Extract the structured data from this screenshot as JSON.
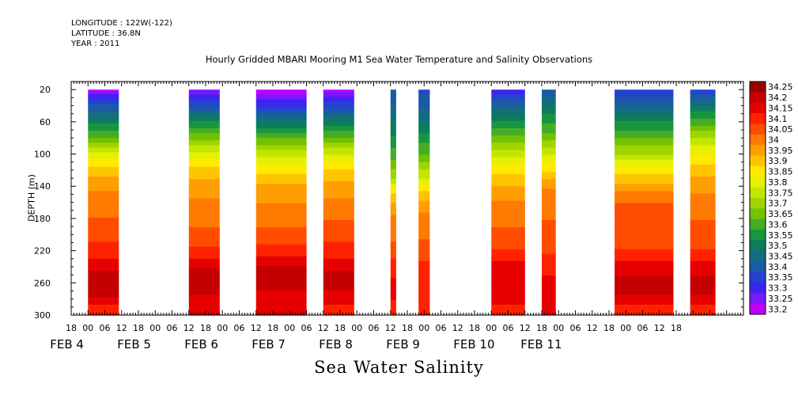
{
  "header": {
    "longitude": "LONGITUDE : 122W(-122)",
    "latitude": "LATITUDE : 36.8N",
    "year": "YEAR : 2011"
  },
  "chart_data": {
    "type": "heatmap",
    "title": "Hourly Gridded MBARI Mooring M1 Sea Water Temperature and Salinity Observations",
    "xlabel": "Sea Water Salinity",
    "ylabel": "DEPTH (m)",
    "y_range": [
      300,
      10
    ],
    "y_ticks": [
      20,
      60,
      100,
      140,
      180,
      220,
      260,
      300
    ],
    "x_hour_ticks": [
      "18",
      "00",
      "06",
      "12",
      "18",
      "00",
      "06",
      "12",
      "18",
      "00",
      "06",
      "12",
      "18",
      "00",
      "06",
      "12",
      "18",
      "00",
      "06",
      "12",
      "18",
      "00",
      "06",
      "12",
      "18",
      "00",
      "06",
      "12",
      "18",
      "00",
      "06",
      "12",
      "18",
      "00",
      "06",
      "12",
      "18"
    ],
    "x_day_labels": [
      "FEB  4",
      "FEB  5",
      "FEB  6",
      "FEB  7",
      "FEB  8",
      "FEB  9",
      "FEB 10",
      "FEB 11"
    ],
    "colorbar": {
      "levels": [
        "34.25",
        "34.2",
        "34.15",
        "34.1",
        "34.05",
        "34",
        "33.95",
        "33.9",
        "33.85",
        "33.8",
        "33.75",
        "33.7",
        "33.65",
        "33.6",
        "33.55",
        "33.5",
        "33.45",
        "33.4",
        "33.35",
        "33.3",
        "33.25",
        "33.2"
      ],
      "colors": [
        "#990000",
        "#c40000",
        "#e60000",
        "#ff2200",
        "#ff4d00",
        "#ff7a00",
        "#ff9e00",
        "#ffc400",
        "#ffea00",
        "#e6f000",
        "#c3e600",
        "#9ed400",
        "#72c200",
        "#45ad25",
        "#17963f",
        "#0c7d5c",
        "#136c82",
        "#1a5aa6",
        "#2443d0",
        "#3d25f0",
        "#7a17ff",
        "#c000ff"
      ]
    },
    "series": [
      {
        "start": "2011-02-04T00:00",
        "end": "2011-02-04T11:00",
        "profile": [
          [
            20,
            33.22
          ],
          [
            35,
            33.38
          ],
          [
            55,
            33.5
          ],
          [
            75,
            33.62
          ],
          [
            95,
            33.78
          ],
          [
            115,
            33.9
          ],
          [
            135,
            33.98
          ],
          [
            160,
            34.02
          ],
          [
            190,
            34.07
          ],
          [
            220,
            34.12
          ],
          [
            245,
            34.2
          ],
          [
            275,
            34.23
          ],
          [
            290,
            34.12
          ]
        ]
      },
      {
        "start": "2011-02-05T12:00",
        "end": "2011-02-05T23:00",
        "profile": [
          [
            20,
            33.25
          ],
          [
            40,
            33.4
          ],
          [
            60,
            33.55
          ],
          [
            80,
            33.68
          ],
          [
            100,
            33.82
          ],
          [
            120,
            33.92
          ],
          [
            140,
            33.97
          ],
          [
            165,
            34.02
          ],
          [
            200,
            34.06
          ],
          [
            225,
            34.13
          ],
          [
            245,
            34.22
          ],
          [
            275,
            34.2
          ],
          [
            290,
            34.15
          ]
        ]
      },
      {
        "start": "2011-02-06T12:00",
        "end": "2011-02-07T06:00",
        "profile": [
          [
            20,
            33.22
          ],
          [
            40,
            33.35
          ],
          [
            60,
            33.5
          ],
          [
            80,
            33.65
          ],
          [
            100,
            33.78
          ],
          [
            120,
            33.88
          ],
          [
            140,
            33.96
          ],
          [
            160,
            34.0
          ],
          [
            190,
            34.05
          ],
          [
            220,
            34.12
          ],
          [
            245,
            34.22
          ],
          [
            270,
            34.2
          ],
          [
            290,
            34.15
          ]
        ]
      },
      {
        "start": "2011-02-07T12:00",
        "end": "2011-02-07T23:00",
        "profile": [
          [
            20,
            33.22
          ],
          [
            40,
            33.38
          ],
          [
            60,
            33.52
          ],
          [
            80,
            33.66
          ],
          [
            100,
            33.8
          ],
          [
            120,
            33.9
          ],
          [
            140,
            33.97
          ],
          [
            165,
            34.02
          ],
          [
            195,
            34.07
          ],
          [
            220,
            34.12
          ],
          [
            245,
            34.2
          ],
          [
            270,
            34.2
          ],
          [
            290,
            34.14
          ]
        ]
      },
      {
        "start": "2011-02-08T12:00",
        "end": "2011-02-08T14:00",
        "profile": [
          [
            20,
            33.4
          ],
          [
            60,
            33.5
          ],
          [
            100,
            33.62
          ],
          [
            130,
            33.75
          ],
          [
            150,
            33.9
          ],
          [
            175,
            34.0
          ],
          [
            210,
            34.05
          ],
          [
            240,
            34.12
          ],
          [
            270,
            34.18
          ],
          [
            290,
            34.12
          ]
        ]
      },
      {
        "start": "2011-02-08T22:00",
        "end": "2011-02-09T02:00",
        "profile": [
          [
            20,
            33.38
          ],
          [
            60,
            33.5
          ],
          [
            100,
            33.65
          ],
          [
            130,
            33.8
          ],
          [
            150,
            33.92
          ],
          [
            180,
            34.02
          ],
          [
            215,
            34.06
          ],
          [
            245,
            34.13
          ],
          [
            280,
            34.12
          ]
        ]
      },
      {
        "start": "2011-02-10T00:00",
        "end": "2011-02-10T12:00",
        "profile": [
          [
            20,
            33.3
          ],
          [
            40,
            33.45
          ],
          [
            60,
            33.55
          ],
          [
            80,
            33.66
          ],
          [
            100,
            33.78
          ],
          [
            120,
            33.88
          ],
          [
            140,
            33.95
          ],
          [
            165,
            34.02
          ],
          [
            200,
            34.06
          ],
          [
            225,
            34.12
          ],
          [
            250,
            34.2
          ],
          [
            275,
            34.18
          ],
          [
            290,
            34.14
          ]
        ]
      },
      {
        "start": "2011-02-10T18:00",
        "end": "2011-02-10T23:00",
        "profile": [
          [
            20,
            33.4
          ],
          [
            50,
            33.55
          ],
          [
            80,
            33.68
          ],
          [
            100,
            33.8
          ],
          [
            125,
            33.92
          ],
          [
            150,
            34.03
          ],
          [
            200,
            34.06
          ],
          [
            240,
            34.13
          ],
          [
            265,
            34.18
          ],
          [
            290,
            34.15
          ]
        ]
      },
      {
        "start": "2011-02-11T20:00",
        "end": "2011-02-12T17:00",
        "profile": [
          [
            20,
            33.35
          ],
          [
            40,
            33.45
          ],
          [
            60,
            33.55
          ],
          [
            80,
            33.65
          ],
          [
            100,
            33.75
          ],
          [
            120,
            33.88
          ],
          [
            140,
            33.97
          ],
          [
            160,
            34.05
          ],
          [
            200,
            34.05
          ],
          [
            225,
            34.12
          ],
          [
            250,
            34.2
          ],
          [
            275,
            34.2
          ],
          [
            290,
            34.14
          ]
        ]
      },
      {
        "start": "2011-02-12T23:00",
        "end": "2011-02-13T08:00",
        "profile": [
          [
            20,
            33.35
          ],
          [
            40,
            33.5
          ],
          [
            60,
            33.62
          ],
          [
            80,
            33.75
          ],
          [
            100,
            33.85
          ],
          [
            120,
            33.93
          ],
          [
            140,
            33.98
          ],
          [
            165,
            34.04
          ],
          [
            200,
            34.06
          ],
          [
            225,
            34.12
          ],
          [
            250,
            34.2
          ],
          [
            275,
            34.2
          ],
          [
            290,
            34.14
          ]
        ]
      }
    ]
  }
}
